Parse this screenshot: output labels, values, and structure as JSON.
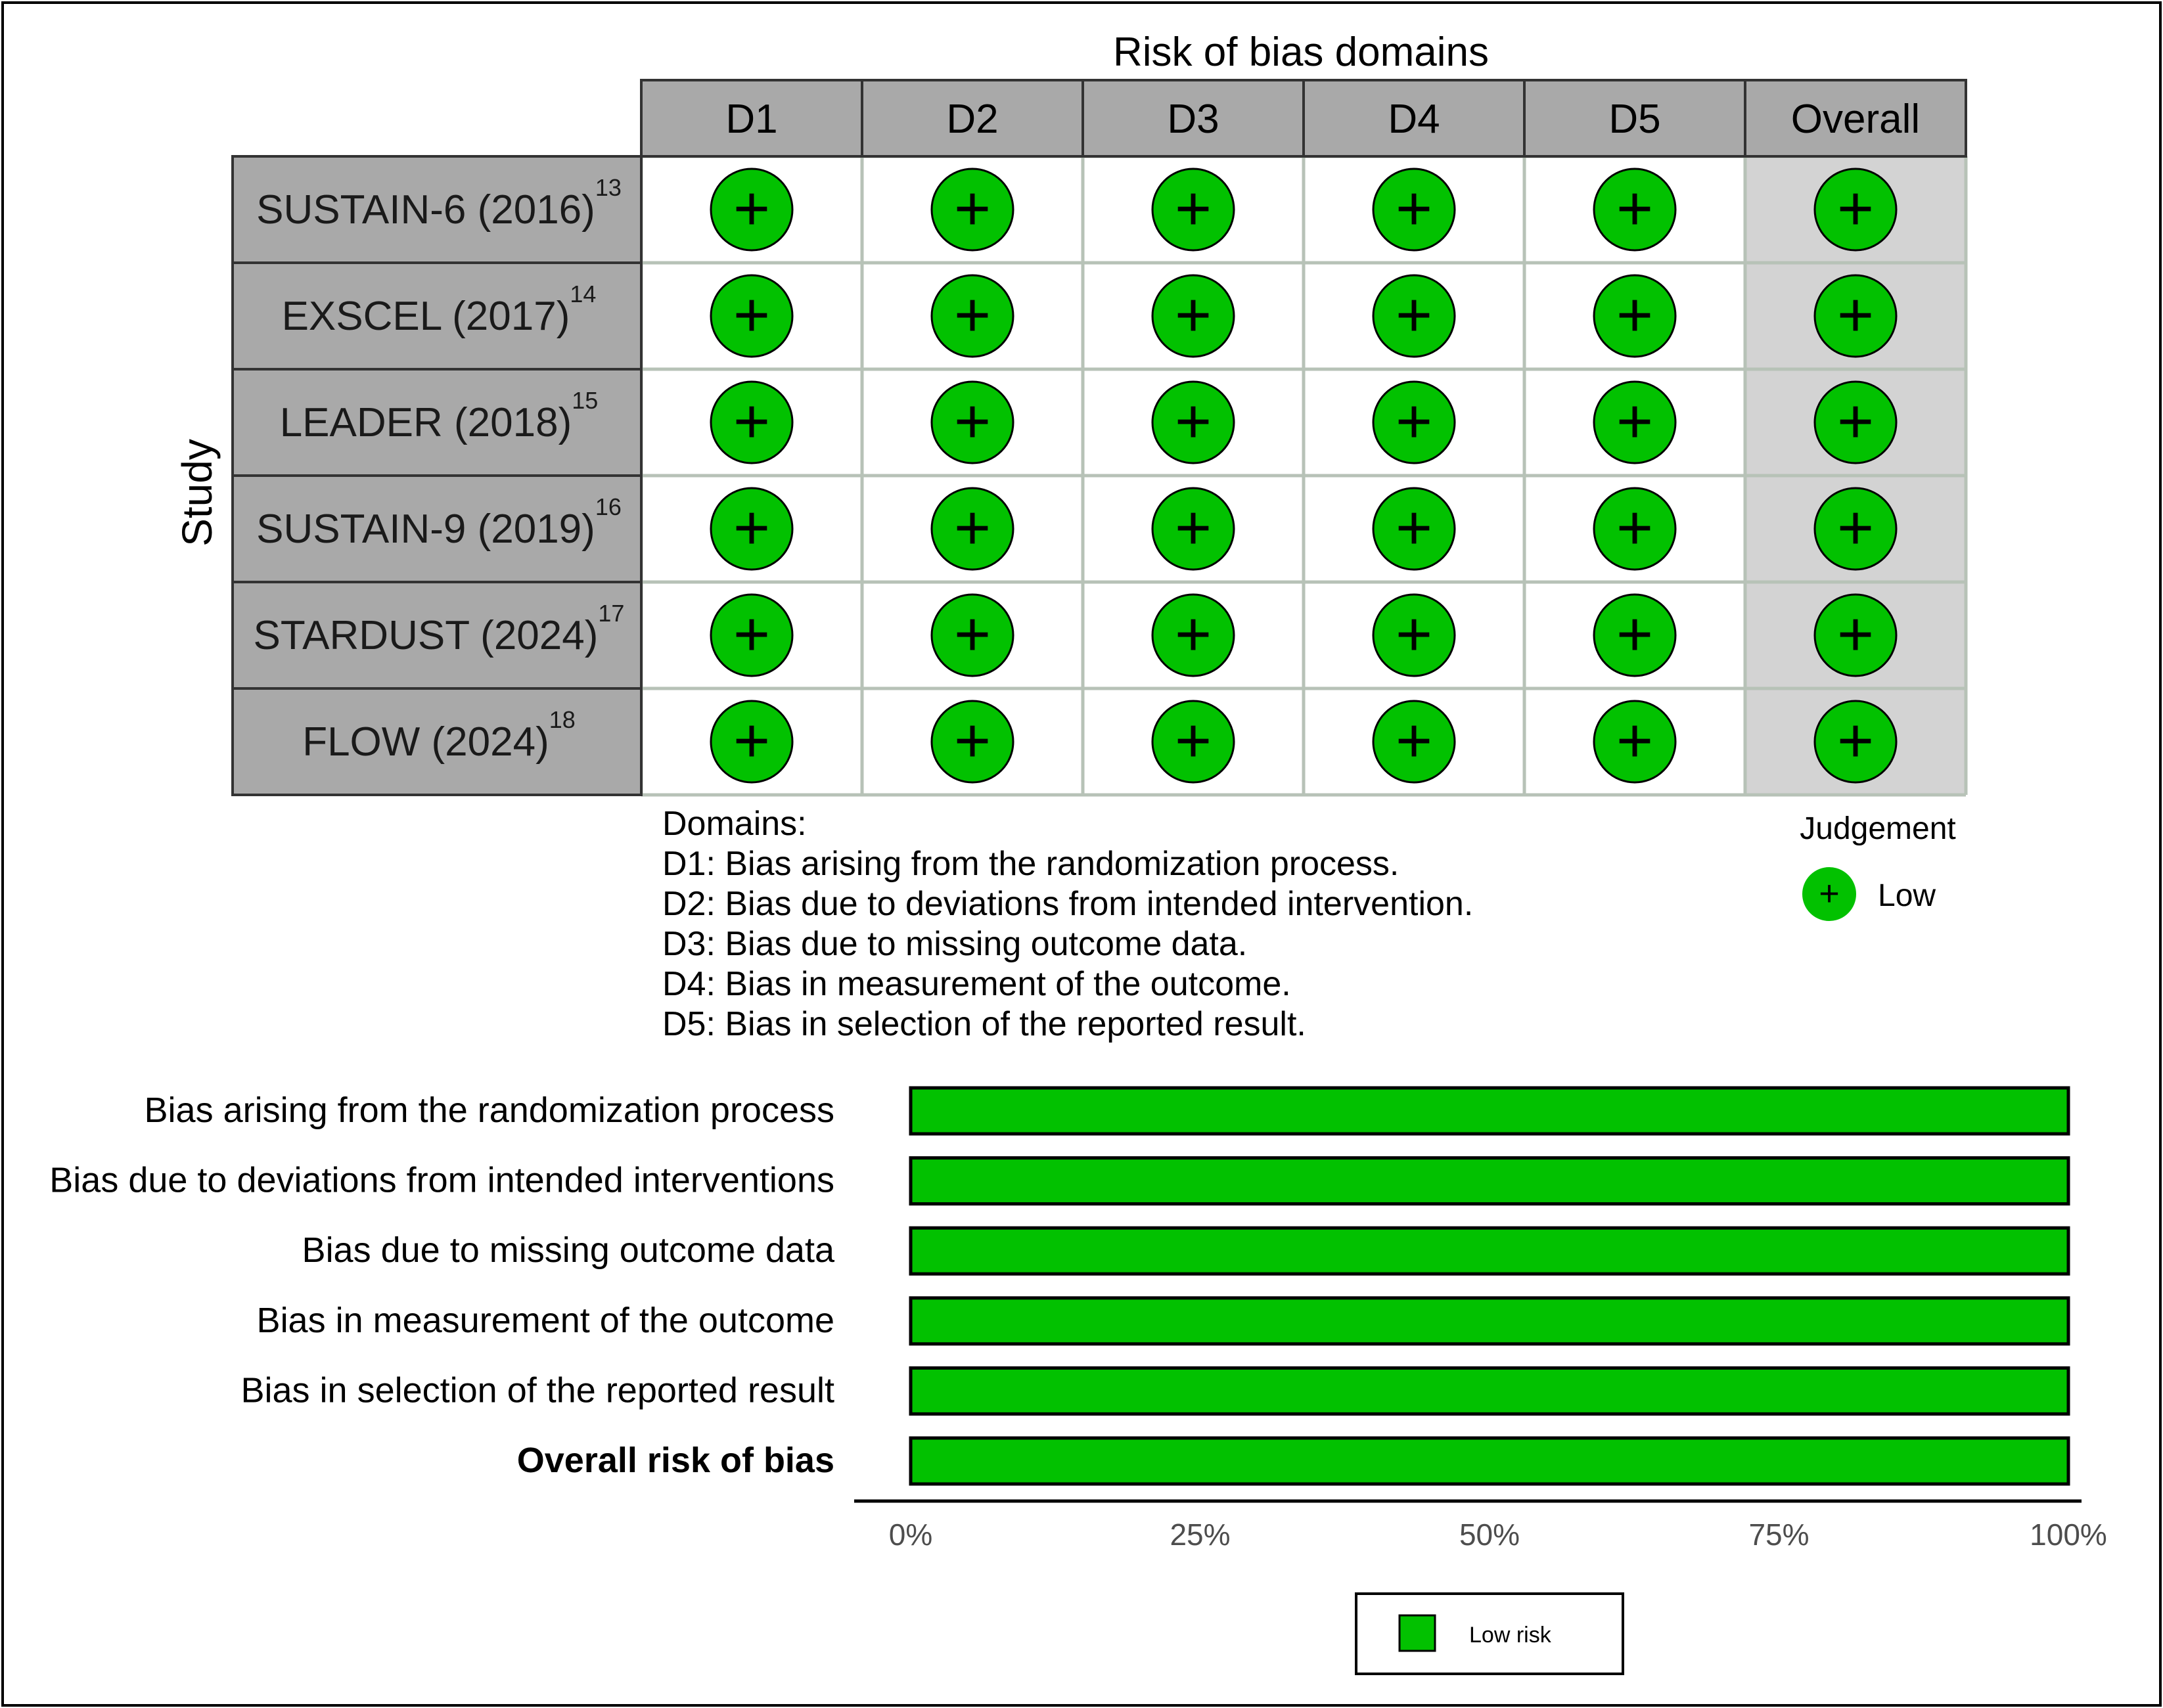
{
  "colors": {
    "low": "#02C100",
    "header_fill": "#A9A9A9",
    "overall_fill": "#D3D3D3",
    "grid": "#B7C2B7",
    "axis_text": "#4D4D4D"
  },
  "icons": {
    "low_judgement": "plus-circle-icon"
  },
  "chart_data": [
    {
      "type": "table",
      "title": "Risk of bias domains",
      "ylabel": "Study",
      "columns": [
        "D1",
        "D2",
        "D3",
        "D4",
        "D5",
        "Overall"
      ],
      "rows": [
        {
          "study": "SUSTAIN-6 (2016)",
          "ref": "13",
          "judgements": [
            "+",
            "+",
            "+",
            "+",
            "+",
            "+"
          ]
        },
        {
          "study": "EXSCEL (2017)",
          "ref": "14",
          "judgements": [
            "+",
            "+",
            "+",
            "+",
            "+",
            "+"
          ]
        },
        {
          "study": "LEADER (2018)",
          "ref": "15",
          "judgements": [
            "+",
            "+",
            "+",
            "+",
            "+",
            "+"
          ]
        },
        {
          "study": "SUSTAIN-9 (2019)",
          "ref": "16",
          "judgements": [
            "+",
            "+",
            "+",
            "+",
            "+",
            "+"
          ]
        },
        {
          "study": "STARDUST (2024)",
          "ref": "17",
          "judgements": [
            "+",
            "+",
            "+",
            "+",
            "+",
            "+"
          ]
        },
        {
          "study": "FLOW (2024)",
          "ref": "18",
          "judgements": [
            "+",
            "+",
            "+",
            "+",
            "+",
            "+"
          ]
        }
      ],
      "domains_heading": "Domains:",
      "domain_descriptions": [
        "D1: Bias arising from the randomization process.",
        "D2: Bias due to deviations from intended intervention.",
        "D3: Bias due to missing outcome data.",
        "D4: Bias in measurement of the outcome.",
        "D5: Bias in selection of the reported result."
      ],
      "legend": {
        "title": "Judgement",
        "entries": [
          {
            "symbol": "+",
            "label": "Low"
          }
        ]
      }
    },
    {
      "type": "bar",
      "orientation": "horizontal",
      "stacked": true,
      "categories": [
        "Bias arising from the randomization process",
        "Bias due to deviations from intended interventions",
        "Bias due to missing outcome data",
        "Bias in measurement of the outcome",
        "Bias in selection of the reported result",
        "Overall risk of bias"
      ],
      "bold_category": "Overall risk of bias",
      "series": [
        {
          "name": "Low risk",
          "values": [
            100,
            100,
            100,
            100,
            100,
            100
          ]
        }
      ],
      "xlim": [
        0,
        100
      ],
      "xticks": [
        "0%",
        "25%",
        "50%",
        "75%",
        "100%"
      ],
      "legend": {
        "placement": "bottom",
        "entries": [
          "Low risk"
        ]
      }
    }
  ]
}
